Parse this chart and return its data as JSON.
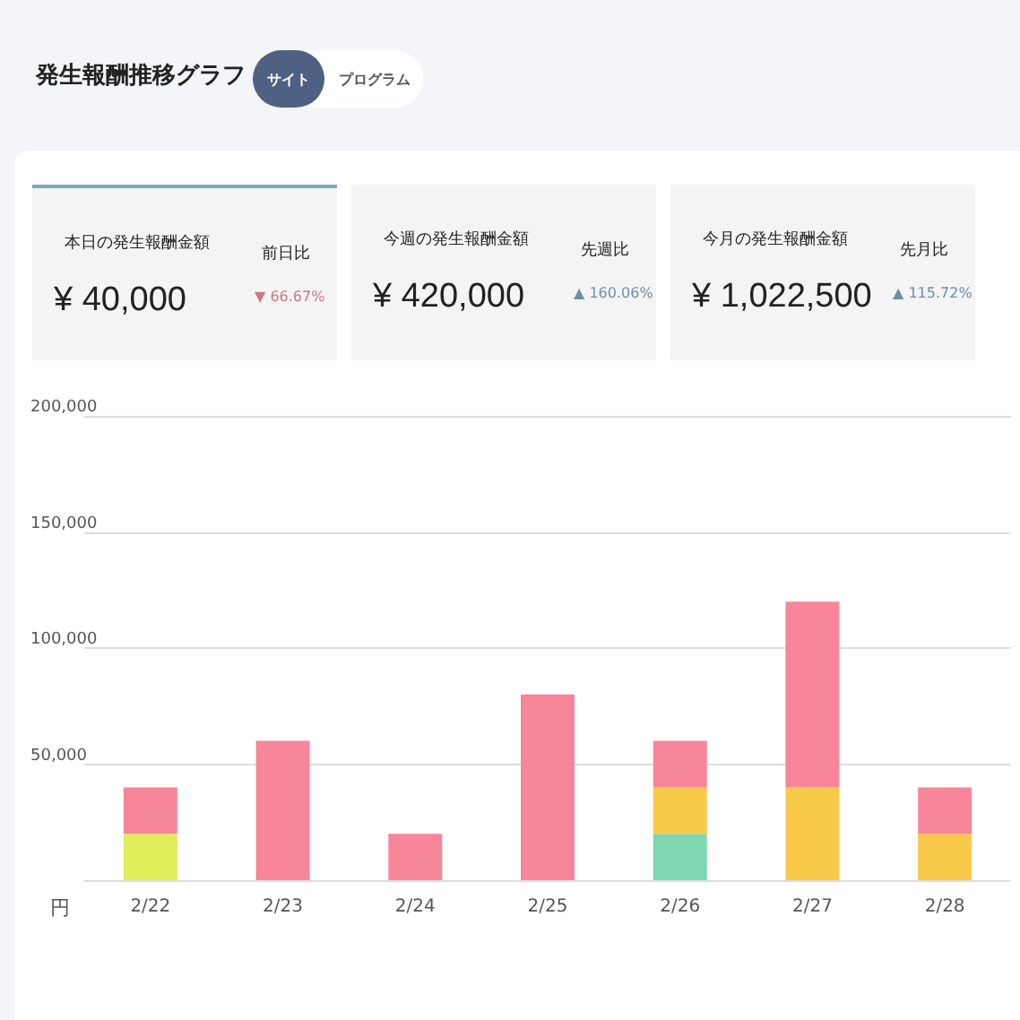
{
  "chart_data": {
    "type": "bar",
    "title": "発生報酬推移グラフ",
    "ylabel": "円",
    "annotations": [
      "サイト",
      "プログラム",
      "本日の発生報酬金額",
      "¥ 40,000",
      "前日比",
      "▼ 66.67%",
      "今週の発生報酬金額",
      "¥ 420,000",
      "先週比",
      "▲ 160.06%",
      "今月の発生報酬金額",
      "¥ 1,022,500",
      "先月比",
      "▲ 115.72%"
    ],
    "categories": [
      "2/22",
      "2/23",
      "2/24",
      "2/25",
      "2/26",
      "2/27",
      "2/28"
    ],
    "stacked": true,
    "series": [
      {
        "color": "#dfee5a",
        "values": [
          20000,
          0,
          0,
          0,
          0,
          0,
          0
        ]
      },
      {
        "color": "#7fd8b0",
        "values": [
          0,
          0,
          0,
          0,
          20000,
          0,
          0
        ]
      },
      {
        "color": "#f9c94a",
        "values": [
          0,
          0,
          0,
          0,
          20000,
          40000,
          20000
        ]
      },
      {
        "color": "#f7869a",
        "values": [
          20000,
          60000,
          20000,
          80000,
          20000,
          80000,
          20000
        ]
      }
    ],
    "ylim": [
      0,
      200000
    ],
    "yticks": [
      {
        "value": 0,
        "label": null
      },
      {
        "value": 50000,
        "label": "50,000"
      },
      {
        "value": 100000,
        "label": "100,000"
      },
      {
        "value": 150000,
        "label": "150,000"
      },
      {
        "value": 200000,
        "label": "200,000"
      }
    ],
    "grid": "y"
  }
}
